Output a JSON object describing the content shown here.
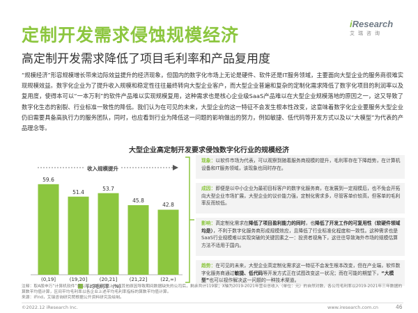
{
  "header": {
    "title": "定制开发需求侵蚀规模经济",
    "subtitle": "高定制开发需求降低了项目毛利率和产品复用度"
  },
  "logo": {
    "word_prefix": "i",
    "word_rest": "Research",
    "sub": "艾瑞咨询"
  },
  "body_text": "“规模经济”形容规模增长带来边际效益提升的经济现象，但国内的数字化市场上无论是硬件、软件还是IT服务领域，主要面向大型企业的服务商很难实现规模效益。数字化企业为了提升收入规模和稳定性往往最终转向大型企业客户，而大型企业普遍和复杂的定制化需求降低了数字化项目的利润率以及复用度，使得本可以“一本万利”的软件产品难以实现规模复用，这种需求也是核心企业级SaaS产品难以在大型企业规模落地的原因之一，这又导致了数字化生态的割裂、行业标准一致性的降低。我们认为在可见的未来，大型企业的这一特征不会发生根本性改变，这意味着数字化企业要服务大型企业仍旧需要具备高执行力的服务团队，同时，也应看到行业为降低这一问题的影响做出的努力，例如敏捷、低代码等开发方式以及以“大模型”为代表的产品理念等。",
  "chart_data": {
    "type": "bar",
    "title": "大型企业高定制开发要求侵蚀数字化行业的规模经济",
    "categories": [
      "(0,19]",
      "(19,20]",
      "(20,21]",
      "(21,22]",
      "(22,∞)"
    ],
    "series": [
      {
        "name": "平均毛利率（%）",
        "values": [
          59.6,
          51.4,
          53.7,
          45.8,
          42.8
        ]
      }
    ],
    "annotation": "收入规模提升",
    "ylim": [
      0,
      65
    ]
  },
  "callouts": [
    {
      "key": "现象：",
      "text": "以软件市场为代表，可以观察到随着服务商规模的提升，毛利率存在下降趋势，在计算机设备和IT服务领域，该现象也同时存在。"
    },
    {
      "key": "成因：",
      "text": "即便是以中小企业为最初目标客户的数字化服务商，在发展到一定规模后，也不免会开拓向大型企业市场扩展，大型企业的议价能力强，定制化需求多，尽管客单价较高，但客单的毛利率反而较低。"
    },
    {
      "key": "影响：",
      "text_pre": "高定制化需求在",
      "bold1": "降低了项目盈利能力的同时",
      "text_mid": "，也",
      "bold2": "降低了开发工作的可复用性（软硬件领域均是）",
      "text_post": "，不利于数字化服务商形成规模效应，且降低了行业标准化程度和一致性。这种需求也是SaaS行业规模难以实现突破的关键因素之一：投资者视角下，这往往导致海外市场的规模估算方法不适用于国内。"
    },
    {
      "key": "趋势：",
      "text_pre": "在可见的未来，大型企业高定制化需求这一特征不会发生根本改变，但在产业端，软件数字化服务商通过",
      "bold1": "敏捷、低代码",
      "text_mid": "等开发方式正在试图改变这一状况；而在可能的期望下，",
      "bold2": "“大模型”",
      "text_post": "也可以视作解决这一问题的一种技术渠道。"
    }
  ],
  "note": "注释：取A股申万“计算机软件”类公司，剔除其中上市或其他原因导致期间数据缺失的公司后，剩余共计119家；X轴为2019-2021年营业总收入（单位：元）的自然对数，各公司毛利率以2019-2021年三年数据的算数平均值计算，区间平均毛利率以各企业上述平均毛利率指标的算数平均值计算。",
  "source": "来源：iFind，艾瑞咨询研究院根据公开资料研究及绘制。",
  "footer": {
    "copyright": "©2022.12 iResearch Inc.",
    "url": "www.iresearch.com.cn",
    "page": "46"
  }
}
